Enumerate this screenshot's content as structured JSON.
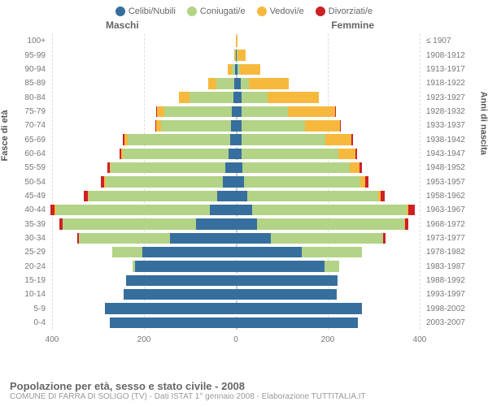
{
  "structure_type": "population-pyramid",
  "legend": [
    {
      "label": "Celibi/Nubili",
      "color": "#366f9e"
    },
    {
      "label": "Coniugati/e",
      "color": "#b3d387"
    },
    {
      "label": "Vedovi/e",
      "color": "#f7b93d"
    },
    {
      "label": "Divorziati/e",
      "color": "#cc2127"
    }
  ],
  "gender_left": "Maschi",
  "gender_right": "Femmine",
  "y_left_title": "Fasce di età",
  "y_right_title": "Anni di nascita",
  "x_axis": {
    "max": 400,
    "ticks": [
      400,
      200,
      0,
      200,
      400
    ]
  },
  "colors": {
    "celibi": "#366f9e",
    "coniugati": "#b3d387",
    "vedovi": "#f7b93d",
    "divorziati": "#cc2127",
    "grid": "#e0e0e0",
    "center_grid": "#cccccc",
    "text": "#777777",
    "background": "#ffffff"
  },
  "typography": {
    "legend_fontsize": 11,
    "label_fontsize": 10,
    "title_fontsize": 13,
    "subtitle_fontsize": 10
  },
  "rows": [
    {
      "age": "0-4",
      "year": "2003-2007",
      "M": {
        "cel": 270,
        "con": 0,
        "ved": 0,
        "div": 0
      },
      "F": {
        "cel": 260,
        "con": 0,
        "ved": 0,
        "div": 0
      }
    },
    {
      "age": "5-9",
      "year": "1998-2002",
      "M": {
        "cel": 280,
        "con": 0,
        "ved": 0,
        "div": 0
      },
      "F": {
        "cel": 270,
        "con": 0,
        "ved": 0,
        "div": 0
      }
    },
    {
      "age": "10-14",
      "year": "1993-1997",
      "M": {
        "cel": 240,
        "con": 0,
        "ved": 0,
        "div": 0
      },
      "F": {
        "cel": 215,
        "con": 0,
        "ved": 0,
        "div": 0
      }
    },
    {
      "age": "15-19",
      "year": "1988-1992",
      "M": {
        "cel": 235,
        "con": 0,
        "ved": 0,
        "div": 0
      },
      "F": {
        "cel": 218,
        "con": 0,
        "ved": 0,
        "div": 0
      }
    },
    {
      "age": "20-24",
      "year": "1983-1987",
      "M": {
        "cel": 215,
        "con": 6,
        "ved": 0,
        "div": 0
      },
      "F": {
        "cel": 190,
        "con": 30,
        "ved": 0,
        "div": 0
      }
    },
    {
      "age": "25-29",
      "year": "1978-1982",
      "M": {
        "cel": 200,
        "con": 65,
        "ved": 0,
        "div": 0
      },
      "F": {
        "cel": 140,
        "con": 130,
        "ved": 0,
        "div": 0
      }
    },
    {
      "age": "30-34",
      "year": "1973-1977",
      "M": {
        "cel": 140,
        "con": 195,
        "ved": 0,
        "div": 4
      },
      "F": {
        "cel": 75,
        "con": 240,
        "ved": 0,
        "div": 5
      }
    },
    {
      "age": "35-39",
      "year": "1968-1972",
      "M": {
        "cel": 85,
        "con": 285,
        "ved": 0,
        "div": 8
      },
      "F": {
        "cel": 45,
        "con": 315,
        "ved": 2,
        "div": 7
      }
    },
    {
      "age": "40-44",
      "year": "1963-1967",
      "M": {
        "cel": 55,
        "con": 330,
        "ved": 2,
        "div": 10
      },
      "F": {
        "cel": 35,
        "con": 330,
        "ved": 4,
        "div": 14
      }
    },
    {
      "age": "45-49",
      "year": "1958-1962",
      "M": {
        "cel": 40,
        "con": 275,
        "ved": 2,
        "div": 8
      },
      "F": {
        "cel": 24,
        "con": 280,
        "ved": 6,
        "div": 8
      }
    },
    {
      "age": "50-54",
      "year": "1953-1957",
      "M": {
        "cel": 28,
        "con": 250,
        "ved": 3,
        "div": 7
      },
      "F": {
        "cel": 18,
        "con": 248,
        "ved": 10,
        "div": 8
      }
    },
    {
      "age": "55-59",
      "year": "1948-1952",
      "M": {
        "cel": 22,
        "con": 245,
        "ved": 3,
        "div": 5
      },
      "F": {
        "cel": 14,
        "con": 230,
        "ved": 20,
        "div": 6
      }
    },
    {
      "age": "60-64",
      "year": "1943-1947",
      "M": {
        "cel": 16,
        "con": 225,
        "ved": 5,
        "div": 3
      },
      "F": {
        "cel": 12,
        "con": 208,
        "ved": 35,
        "div": 4
      }
    },
    {
      "age": "65-69",
      "year": "1938-1942",
      "M": {
        "cel": 12,
        "con": 220,
        "ved": 7,
        "div": 3
      },
      "F": {
        "cel": 12,
        "con": 180,
        "ved": 55,
        "div": 3
      }
    },
    {
      "age": "70-74",
      "year": "1933-1937",
      "M": {
        "cel": 10,
        "con": 150,
        "ved": 10,
        "div": 2
      },
      "F": {
        "cel": 12,
        "con": 135,
        "ved": 75,
        "div": 2
      }
    },
    {
      "age": "75-79",
      "year": "1928-1932",
      "M": {
        "cel": 8,
        "con": 145,
        "ved": 16,
        "div": 1
      },
      "F": {
        "cel": 12,
        "con": 100,
        "ved": 100,
        "div": 1
      }
    },
    {
      "age": "80-84",
      "year": "1923-1927",
      "M": {
        "cel": 5,
        "con": 95,
        "ved": 22,
        "div": 0
      },
      "F": {
        "cel": 12,
        "con": 55,
        "ved": 110,
        "div": 0
      }
    },
    {
      "age": "85-89",
      "year": "1918-1922",
      "M": {
        "cel": 3,
        "con": 38,
        "ved": 18,
        "div": 0
      },
      "F": {
        "cel": 10,
        "con": 18,
        "ved": 85,
        "div": 0
      }
    },
    {
      "age": "90-94",
      "year": "1913-1917",
      "M": {
        "cel": 1,
        "con": 8,
        "ved": 8,
        "div": 0
      },
      "F": {
        "cel": 4,
        "con": 4,
        "ved": 45,
        "div": 0
      }
    },
    {
      "age": "95-99",
      "year": "1908-1912",
      "M": {
        "cel": 0,
        "con": 1,
        "ved": 2,
        "div": 0
      },
      "F": {
        "cel": 2,
        "con": 1,
        "ved": 18,
        "div": 0
      }
    },
    {
      "age": "100+",
      "year": "≤ 1907",
      "M": {
        "cel": 0,
        "con": 0,
        "ved": 0,
        "div": 0
      },
      "F": {
        "cel": 0,
        "con": 0,
        "ved": 3,
        "div": 0
      }
    }
  ],
  "footer": {
    "title": "Popolazione per età, sesso e stato civile - 2008",
    "subtitle": "COMUNE DI FARRA DI SOLIGO (TV) - Dati ISTAT 1° gennaio 2008 - Elaborazione TUTTITALIA.IT"
  }
}
